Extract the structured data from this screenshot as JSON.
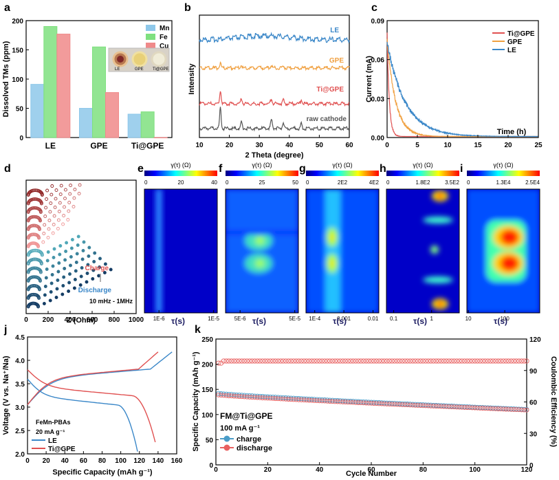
{
  "chart_data": [
    {
      "panel": "a",
      "type": "bar",
      "title": "",
      "ylabel": "Dissolved TMs (ppm)",
      "xlabel": "",
      "categories": [
        "LE",
        "GPE",
        "Ti@GPE"
      ],
      "ylim": [
        0,
        200
      ],
      "yticks": [
        "0",
        "50",
        "100",
        "150",
        "200"
      ],
      "series": [
        {
          "name": "Mn",
          "color": "#8ec8ea",
          "values": [
            91,
            50,
            40
          ]
        },
        {
          "name": "Fe",
          "color": "#7fe07f",
          "values": [
            190,
            155,
            44
          ]
        },
        {
          "name": "Cu",
          "color": "#f08a8a",
          "values": [
            177,
            77,
            0
          ]
        }
      ],
      "inset_labels": [
        "LE",
        "GPE",
        "Ti@GPE"
      ]
    },
    {
      "panel": "b",
      "type": "line",
      "xlabel": "2 Theta (degree)",
      "ylabel": "Intensity",
      "xlim": [
        10,
        60
      ],
      "xticks": [
        "10",
        "20",
        "30",
        "40",
        "50",
        "60"
      ],
      "series": [
        {
          "name": "LE",
          "color": "#3a87c8"
        },
        {
          "name": "GPE",
          "color": "#f0a040"
        },
        {
          "name": "Ti@GPE",
          "color": "#e05050"
        },
        {
          "name": "raw cathode",
          "color": "#555555"
        }
      ]
    },
    {
      "panel": "c",
      "type": "line",
      "xlabel": "Time (h)",
      "ylabel": "Current (mA)",
      "xlim": [
        0,
        25
      ],
      "ylim": [
        0,
        0.09
      ],
      "xticks": [
        "0",
        "5",
        "10",
        "15",
        "20",
        "25"
      ],
      "yticks": [
        "0.00",
        "0.03",
        "0.06",
        "0.09"
      ],
      "series": [
        {
          "name": "Ti@GPE",
          "color": "#e05050"
        },
        {
          "name": "GPE",
          "color": "#f0a040"
        },
        {
          "name": "LE",
          "color": "#3a87c8"
        }
      ]
    },
    {
      "panel": "d",
      "type": "scatter",
      "xlabel": "Z (Ohm)",
      "xlim": [
        0,
        1000
      ],
      "xticks": [
        "0",
        "200",
        "400",
        "600",
        "800",
        "1000"
      ],
      "annotations": [
        "Charge",
        "Discharge",
        "10 mHz - 1MHz"
      ]
    },
    {
      "panel": "e",
      "type": "heatmap",
      "colorbar_title": "γ(τ) (Ω)",
      "colorbar_ticks": [
        "0",
        "20",
        "40"
      ],
      "xticks": [
        "1E-6",
        "1E-5"
      ],
      "xlabel": "τ(s)"
    },
    {
      "panel": "f",
      "type": "heatmap",
      "colorbar_title": "γ(τ) (Ω)",
      "colorbar_ticks": [
        "0",
        "25",
        "50"
      ],
      "xticks": [
        "5E-6",
        "5E-5"
      ],
      "xlabel": "τ(s)"
    },
    {
      "panel": "g",
      "type": "heatmap",
      "colorbar_title": "γ(τ) (Ω)",
      "colorbar_ticks": [
        "0",
        "2E2",
        "4E2"
      ],
      "xticks": [
        "1E-4",
        "0.001",
        "0.01"
      ],
      "xlabel": "τ(s)"
    },
    {
      "panel": "h",
      "type": "heatmap",
      "colorbar_title": "γ(τ) (Ω)",
      "colorbar_ticks": [
        "0",
        "1.8E2",
        "3.5E2"
      ],
      "xticks": [
        "0.1",
        "1"
      ],
      "xlabel": "τ(s)"
    },
    {
      "panel": "i",
      "type": "heatmap",
      "colorbar_title": "γ(τ) (Ω)",
      "colorbar_ticks": [
        "0",
        "1.3E4",
        "2.5E4"
      ],
      "xticks": [
        "10",
        "100"
      ],
      "xlabel": "τ(s)"
    },
    {
      "panel": "j",
      "type": "line",
      "xlabel": "Specific Capacity (mAh g⁻¹)",
      "ylabel": "Voltage (V vs. Na⁺/Na)",
      "xlim": [
        0,
        160
      ],
      "ylim": [
        2.0,
        4.5
      ],
      "xticks": [
        "0",
        "20",
        "40",
        "60",
        "80",
        "100",
        "120",
        "140",
        "160"
      ],
      "yticks": [
        "2.0",
        "2.5",
        "3.0",
        "3.5",
        "4.0",
        "4.5"
      ],
      "annotations": [
        "FeMn-PBAs",
        "20 mA g⁻¹"
      ],
      "series": [
        {
          "name": "LE",
          "color": "#3a87c8",
          "charge_capacity": 155,
          "discharge_capacity": 118
        },
        {
          "name": "Ti@GPE",
          "color": "#e05050",
          "charge_capacity": 140,
          "discharge_capacity": 137
        }
      ]
    },
    {
      "panel": "k",
      "type": "scatter",
      "xlabel": "Cycle Number",
      "ylabel": "Specific Capacity (mAh g⁻¹)",
      "y2label": "Coulombic Efficiency (%)",
      "xlim": [
        0,
        120
      ],
      "ylim": [
        0,
        250
      ],
      "y2lim": [
        0,
        120
      ],
      "xticks": [
        "0",
        "20",
        "40",
        "60",
        "80",
        "100",
        "120"
      ],
      "yticks": [
        "0",
        "50",
        "100",
        "150",
        "200",
        "250"
      ],
      "y2ticks": [
        "0",
        "30",
        "60",
        "90",
        "120"
      ],
      "annotations": [
        "FM@Ti@GPE",
        "100 mA g⁻¹"
      ],
      "series": [
        {
          "name": "charge",
          "color": "#4a9cc8",
          "start": 142,
          "end": 110
        },
        {
          "name": "discharge",
          "color": "#e86060",
          "start": 139,
          "end": 109
        },
        {
          "name": "coulombic efficiency",
          "color": "#e86060",
          "value": 99
        }
      ]
    }
  ]
}
